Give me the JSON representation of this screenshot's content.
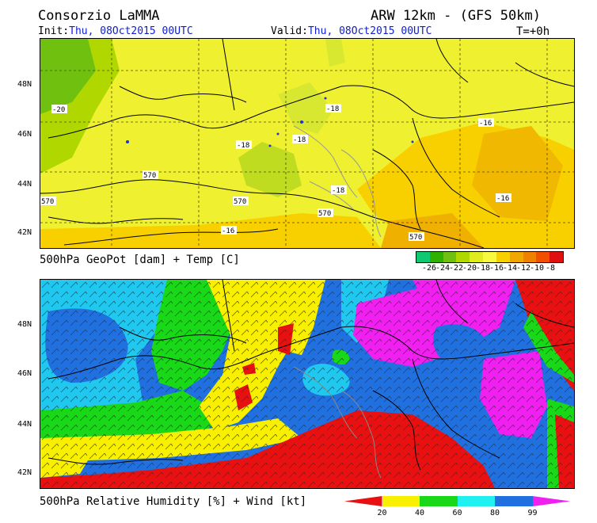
{
  "header": {
    "org": "Consorzio LaMMA",
    "model": "ARW 12km - (GFS 50km)",
    "init_label": "Init:",
    "init_value": "Thu, 08Oct2015 00UTC",
    "valid_label": "Valid:",
    "valid_value": "Thu, 08Oct2015 00UTC",
    "step": "T=+0h"
  },
  "top_panel": {
    "caption": "500hPa GeoPot [dam] + Temp [C]",
    "lat_labels": [
      "48N",
      "46N",
      "44N",
      "42N"
    ],
    "contour_labels": [
      "-20",
      "-18",
      "-18",
      "-18",
      "-16",
      "-18",
      "-16",
      "-16",
      "570",
      "570",
      "570",
      "570",
      "570"
    ],
    "colorbar": {
      "colors": [
        "#10c870",
        "#30b000",
        "#70c010",
        "#b0d800",
        "#e0ec20",
        "#f8f840",
        "#f8d000",
        "#f0a800",
        "#f08000",
        "#f05000",
        "#e01010"
      ],
      "labels": [
        "-26",
        "-24",
        "-22",
        "-20",
        "-18",
        "-16",
        "-14",
        "-12",
        "-10",
        "-8"
      ]
    }
  },
  "bottom_panel": {
    "caption": "500hPa Relative Humidity [%] + Wind [kt]",
    "lat_labels": [
      "48N",
      "46N",
      "44N",
      "42N"
    ],
    "colorbar": {
      "colors": [
        "#e81010",
        "#f8f000",
        "#18d818",
        "#20f0f0",
        "#2070e0",
        "#f020f0"
      ],
      "labels": [
        "20",
        "40",
        "60",
        "80",
        "99"
      ]
    }
  }
}
